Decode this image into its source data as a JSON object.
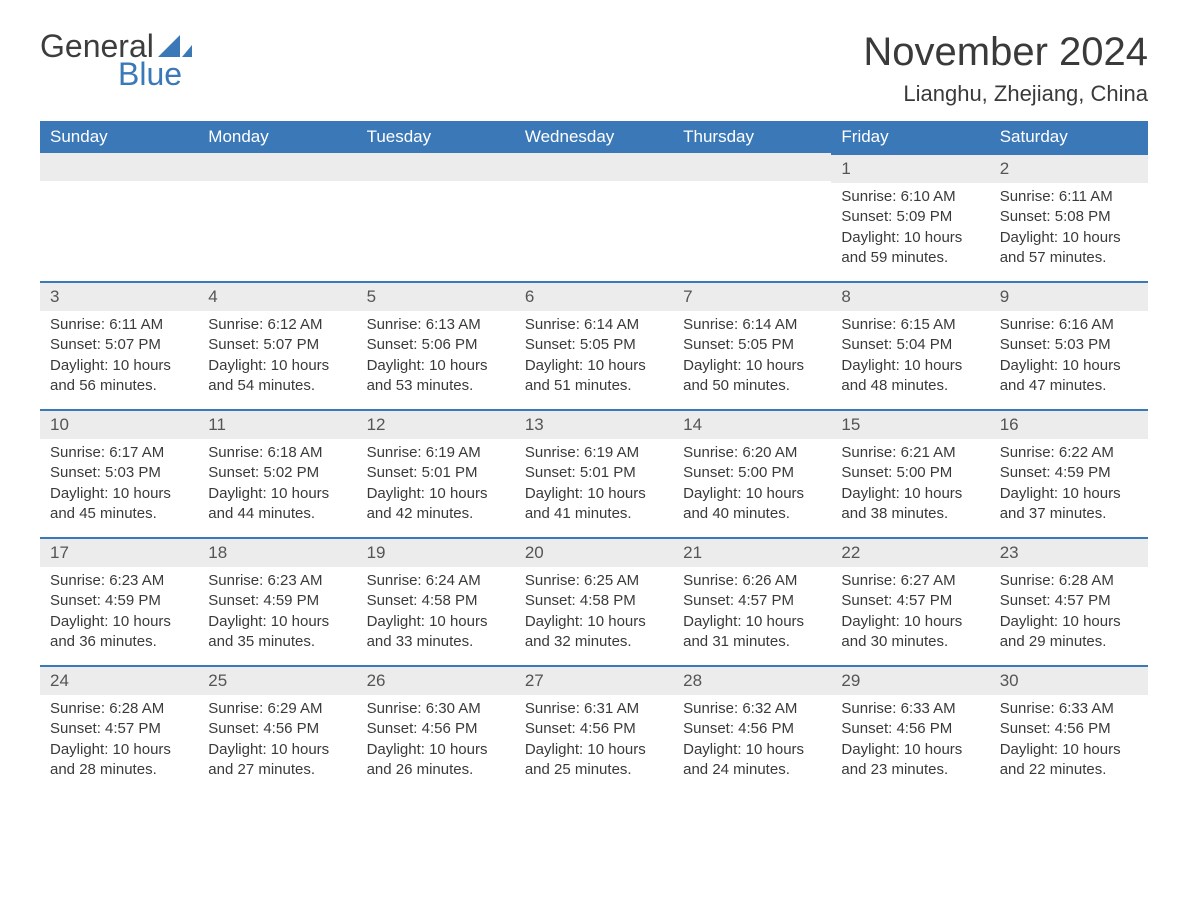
{
  "logo": {
    "word1": "General",
    "word2": "Blue"
  },
  "title": "November 2024",
  "location": "Lianghu, Zhejiang, China",
  "colors": {
    "header_bg": "#3b78b8",
    "header_text": "#ffffff",
    "dayhead_bg": "#ececec",
    "dayhead_border": "#3b78b8",
    "text": "#3a3a3a",
    "logo_blue": "#3b78b8",
    "background": "#ffffff"
  },
  "weekdays": [
    "Sunday",
    "Monday",
    "Tuesday",
    "Wednesday",
    "Thursday",
    "Friday",
    "Saturday"
  ],
  "cells": [
    {
      "empty": true
    },
    {
      "empty": true
    },
    {
      "empty": true
    },
    {
      "empty": true
    },
    {
      "empty": true
    },
    {
      "day": "1",
      "sunrise": "Sunrise: 6:10 AM",
      "sunset": "Sunset: 5:09 PM",
      "daylight1": "Daylight: 10 hours",
      "daylight2": "and 59 minutes."
    },
    {
      "day": "2",
      "sunrise": "Sunrise: 6:11 AM",
      "sunset": "Sunset: 5:08 PM",
      "daylight1": "Daylight: 10 hours",
      "daylight2": "and 57 minutes."
    },
    {
      "day": "3",
      "sunrise": "Sunrise: 6:11 AM",
      "sunset": "Sunset: 5:07 PM",
      "daylight1": "Daylight: 10 hours",
      "daylight2": "and 56 minutes."
    },
    {
      "day": "4",
      "sunrise": "Sunrise: 6:12 AM",
      "sunset": "Sunset: 5:07 PM",
      "daylight1": "Daylight: 10 hours",
      "daylight2": "and 54 minutes."
    },
    {
      "day": "5",
      "sunrise": "Sunrise: 6:13 AM",
      "sunset": "Sunset: 5:06 PM",
      "daylight1": "Daylight: 10 hours",
      "daylight2": "and 53 minutes."
    },
    {
      "day": "6",
      "sunrise": "Sunrise: 6:14 AM",
      "sunset": "Sunset: 5:05 PM",
      "daylight1": "Daylight: 10 hours",
      "daylight2": "and 51 minutes."
    },
    {
      "day": "7",
      "sunrise": "Sunrise: 6:14 AM",
      "sunset": "Sunset: 5:05 PM",
      "daylight1": "Daylight: 10 hours",
      "daylight2": "and 50 minutes."
    },
    {
      "day": "8",
      "sunrise": "Sunrise: 6:15 AM",
      "sunset": "Sunset: 5:04 PM",
      "daylight1": "Daylight: 10 hours",
      "daylight2": "and 48 minutes."
    },
    {
      "day": "9",
      "sunrise": "Sunrise: 6:16 AM",
      "sunset": "Sunset: 5:03 PM",
      "daylight1": "Daylight: 10 hours",
      "daylight2": "and 47 minutes."
    },
    {
      "day": "10",
      "sunrise": "Sunrise: 6:17 AM",
      "sunset": "Sunset: 5:03 PM",
      "daylight1": "Daylight: 10 hours",
      "daylight2": "and 45 minutes."
    },
    {
      "day": "11",
      "sunrise": "Sunrise: 6:18 AM",
      "sunset": "Sunset: 5:02 PM",
      "daylight1": "Daylight: 10 hours",
      "daylight2": "and 44 minutes."
    },
    {
      "day": "12",
      "sunrise": "Sunrise: 6:19 AM",
      "sunset": "Sunset: 5:01 PM",
      "daylight1": "Daylight: 10 hours",
      "daylight2": "and 42 minutes."
    },
    {
      "day": "13",
      "sunrise": "Sunrise: 6:19 AM",
      "sunset": "Sunset: 5:01 PM",
      "daylight1": "Daylight: 10 hours",
      "daylight2": "and 41 minutes."
    },
    {
      "day": "14",
      "sunrise": "Sunrise: 6:20 AM",
      "sunset": "Sunset: 5:00 PM",
      "daylight1": "Daylight: 10 hours",
      "daylight2": "and 40 minutes."
    },
    {
      "day": "15",
      "sunrise": "Sunrise: 6:21 AM",
      "sunset": "Sunset: 5:00 PM",
      "daylight1": "Daylight: 10 hours",
      "daylight2": "and 38 minutes."
    },
    {
      "day": "16",
      "sunrise": "Sunrise: 6:22 AM",
      "sunset": "Sunset: 4:59 PM",
      "daylight1": "Daylight: 10 hours",
      "daylight2": "and 37 minutes."
    },
    {
      "day": "17",
      "sunrise": "Sunrise: 6:23 AM",
      "sunset": "Sunset: 4:59 PM",
      "daylight1": "Daylight: 10 hours",
      "daylight2": "and 36 minutes."
    },
    {
      "day": "18",
      "sunrise": "Sunrise: 6:23 AM",
      "sunset": "Sunset: 4:59 PM",
      "daylight1": "Daylight: 10 hours",
      "daylight2": "and 35 minutes."
    },
    {
      "day": "19",
      "sunrise": "Sunrise: 6:24 AM",
      "sunset": "Sunset: 4:58 PM",
      "daylight1": "Daylight: 10 hours",
      "daylight2": "and 33 minutes."
    },
    {
      "day": "20",
      "sunrise": "Sunrise: 6:25 AM",
      "sunset": "Sunset: 4:58 PM",
      "daylight1": "Daylight: 10 hours",
      "daylight2": "and 32 minutes."
    },
    {
      "day": "21",
      "sunrise": "Sunrise: 6:26 AM",
      "sunset": "Sunset: 4:57 PM",
      "daylight1": "Daylight: 10 hours",
      "daylight2": "and 31 minutes."
    },
    {
      "day": "22",
      "sunrise": "Sunrise: 6:27 AM",
      "sunset": "Sunset: 4:57 PM",
      "daylight1": "Daylight: 10 hours",
      "daylight2": "and 30 minutes."
    },
    {
      "day": "23",
      "sunrise": "Sunrise: 6:28 AM",
      "sunset": "Sunset: 4:57 PM",
      "daylight1": "Daylight: 10 hours",
      "daylight2": "and 29 minutes."
    },
    {
      "day": "24",
      "sunrise": "Sunrise: 6:28 AM",
      "sunset": "Sunset: 4:57 PM",
      "daylight1": "Daylight: 10 hours",
      "daylight2": "and 28 minutes."
    },
    {
      "day": "25",
      "sunrise": "Sunrise: 6:29 AM",
      "sunset": "Sunset: 4:56 PM",
      "daylight1": "Daylight: 10 hours",
      "daylight2": "and 27 minutes."
    },
    {
      "day": "26",
      "sunrise": "Sunrise: 6:30 AM",
      "sunset": "Sunset: 4:56 PM",
      "daylight1": "Daylight: 10 hours",
      "daylight2": "and 26 minutes."
    },
    {
      "day": "27",
      "sunrise": "Sunrise: 6:31 AM",
      "sunset": "Sunset: 4:56 PM",
      "daylight1": "Daylight: 10 hours",
      "daylight2": "and 25 minutes."
    },
    {
      "day": "28",
      "sunrise": "Sunrise: 6:32 AM",
      "sunset": "Sunset: 4:56 PM",
      "daylight1": "Daylight: 10 hours",
      "daylight2": "and 24 minutes."
    },
    {
      "day": "29",
      "sunrise": "Sunrise: 6:33 AM",
      "sunset": "Sunset: 4:56 PM",
      "daylight1": "Daylight: 10 hours",
      "daylight2": "and 23 minutes."
    },
    {
      "day": "30",
      "sunrise": "Sunrise: 6:33 AM",
      "sunset": "Sunset: 4:56 PM",
      "daylight1": "Daylight: 10 hours",
      "daylight2": "and 22 minutes."
    }
  ]
}
